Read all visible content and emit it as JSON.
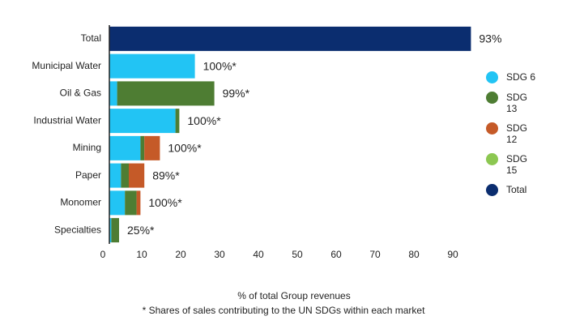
{
  "chart_data": {
    "type": "stacked-barh",
    "categories": [
      "Total",
      "Municipal Water",
      "Oil & Gas",
      "Industrial Water",
      "Mining",
      "Paper",
      "Monomer",
      "Specialties"
    ],
    "series": [
      {
        "name": "SDG 6",
        "color": "#22c4f4",
        "values": [
          null,
          22,
          2,
          17,
          8,
          3,
          4,
          0.5
        ]
      },
      {
        "name": "SDG 13",
        "color": "#4e7d33",
        "values": [
          null,
          null,
          25,
          1,
          1,
          2,
          3,
          2
        ]
      },
      {
        "name": "SDG 12",
        "color": "#c55a28",
        "values": [
          null,
          null,
          null,
          null,
          4,
          4,
          1,
          null
        ]
      },
      {
        "name": "SDG 15",
        "color": "#8cc751",
        "values": [
          null,
          null,
          null,
          null,
          null,
          null,
          null,
          null
        ]
      },
      {
        "name": "Total",
        "color": "#0b2d6f",
        "values": [
          93,
          null,
          null,
          null,
          null,
          null,
          null,
          null
        ]
      }
    ],
    "annotations": [
      "93%",
      "100%*",
      "99%*",
      "100%*",
      "100%*",
      "89%*",
      "100%*",
      "25%*"
    ],
    "xlim": [
      0,
      95
    ],
    "xticks": [
      0,
      10,
      20,
      30,
      40,
      50,
      60,
      70,
      80,
      90
    ],
    "xlabel": "% of total Group revenues",
    "footnote": "* Shares of sales contributing to the UN SDGs within each market",
    "legend": "right"
  }
}
